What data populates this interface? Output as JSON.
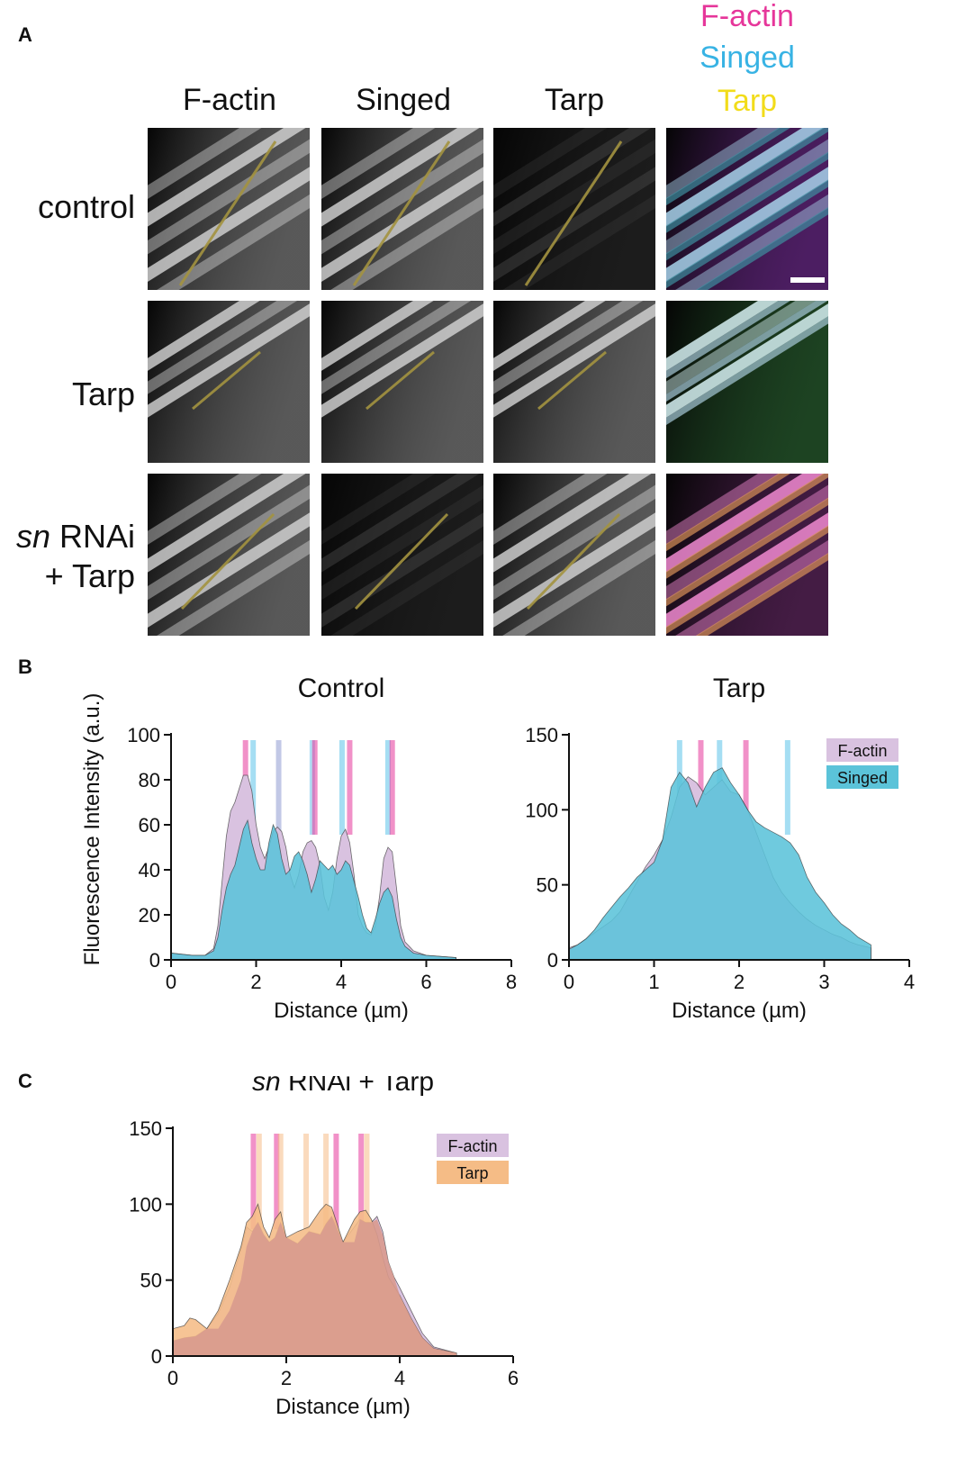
{
  "panel_labels": {
    "a": "A",
    "b": "B",
    "c": "C"
  },
  "panel_a": {
    "column_headers": [
      "F-actin",
      "Singed",
      "Tarp"
    ],
    "merge_legend": [
      {
        "label": "F-actin",
        "color": "#e6369a"
      },
      {
        "label": "Singed",
        "color": "#38b3e4"
      },
      {
        "label": "Tarp",
        "color": "#f2dc1a"
      }
    ],
    "rows": [
      {
        "label": "control"
      },
      {
        "label": "Tarp"
      },
      {
        "label_italic": "sn",
        "label_rest": " RNAi",
        "label_line2": "+ Tarp"
      }
    ]
  },
  "chart_data": [
    {
      "type": "area",
      "title": "Control",
      "xlabel": "Distance (µm)",
      "ylabel": "Fluorescence Intensity (a.u.)",
      "xlim": [
        0,
        8
      ],
      "ylim": [
        0,
        100
      ],
      "xticks": [
        0,
        2,
        4,
        6,
        8
      ],
      "yticks": [
        0,
        20,
        40,
        60,
        80,
        100
      ],
      "legend": "none",
      "series": [
        {
          "color": "#d9c2e0",
          "x": [
            0,
            0.5,
            0.8,
            1.0,
            1.1,
            1.2,
            1.3,
            1.4,
            1.5,
            1.6,
            1.7,
            1.8,
            1.9,
            2.0,
            2.1,
            2.2,
            2.3,
            2.4,
            2.5,
            2.6,
            2.7,
            2.8,
            2.9,
            3.0,
            3.1,
            3.2,
            3.3,
            3.4,
            3.5,
            3.6,
            3.7,
            3.8,
            3.9,
            4.0,
            4.1,
            4.2,
            4.3,
            4.4,
            4.5,
            4.6,
            4.7,
            4.8,
            4.9,
            5.0,
            5.1,
            5.2,
            5.3,
            5.4,
            5.5,
            5.7,
            6.0,
            6.7
          ],
          "y": [
            3,
            2,
            2,
            5,
            15,
            35,
            55,
            66,
            70,
            76,
            82,
            82,
            75,
            60,
            50,
            45,
            50,
            57,
            59,
            57,
            50,
            38,
            32,
            38,
            48,
            52,
            53,
            50,
            42,
            28,
            22,
            30,
            45,
            55,
            58,
            52,
            38,
            20,
            15,
            12,
            11,
            15,
            28,
            45,
            50,
            48,
            32,
            15,
            8,
            4,
            2,
            1
          ]
        },
        {
          "color": "#5bc3d9",
          "x": [
            0,
            0.5,
            0.8,
            1.0,
            1.1,
            1.2,
            1.3,
            1.4,
            1.5,
            1.6,
            1.7,
            1.8,
            1.9,
            2.0,
            2.1,
            2.2,
            2.3,
            2.4,
            2.5,
            2.6,
            2.7,
            2.8,
            2.9,
            3.0,
            3.1,
            3.2,
            3.3,
            3.4,
            3.5,
            3.6,
            3.7,
            3.8,
            3.9,
            4.0,
            4.1,
            4.2,
            4.3,
            4.4,
            4.5,
            4.6,
            4.7,
            4.8,
            4.9,
            5.0,
            5.1,
            5.2,
            5.3,
            5.4,
            5.5,
            5.7,
            6.0,
            6.7
          ],
          "y": [
            3,
            2,
            2,
            4,
            10,
            22,
            32,
            38,
            42,
            50,
            58,
            62,
            52,
            45,
            40,
            40,
            52,
            60,
            56,
            45,
            38,
            40,
            46,
            48,
            44,
            38,
            30,
            36,
            44,
            42,
            40,
            42,
            38,
            40,
            44,
            42,
            35,
            28,
            20,
            14,
            12,
            18,
            25,
            30,
            32,
            28,
            18,
            10,
            6,
            3,
            2,
            1
          ]
        }
      ],
      "peak_markers": [
        {
          "x": 1.75,
          "color": "#e6369a"
        },
        {
          "x": 1.93,
          "color": "#5bc3e9"
        },
        {
          "x": 2.53,
          "color": "#8f9ad1"
        },
        {
          "x": 3.32,
          "color": "#6fc3e9"
        },
        {
          "x": 3.38,
          "color": "#e6369a"
        },
        {
          "x": 4.02,
          "color": "#5bc3e9"
        },
        {
          "x": 4.2,
          "color": "#e6369a"
        },
        {
          "x": 5.1,
          "color": "#5bc3e9"
        },
        {
          "x": 5.2,
          "color": "#e6369a"
        }
      ]
    },
    {
      "type": "area",
      "title": "Tarp",
      "xlabel": "Distance (µm)",
      "ylabel": "",
      "xlim": [
        0,
        4
      ],
      "ylim": [
        0,
        150
      ],
      "xticks": [
        0,
        1,
        2,
        3,
        4
      ],
      "yticks": [
        0,
        50,
        100,
        150
      ],
      "legend": "top-right",
      "series": [
        {
          "name": "F-actin",
          "color": "#d9c2e0",
          "x": [
            0,
            0.1,
            0.2,
            0.3,
            0.4,
            0.5,
            0.6,
            0.7,
            0.8,
            0.9,
            1.0,
            1.1,
            1.2,
            1.3,
            1.4,
            1.5,
            1.6,
            1.7,
            1.8,
            1.9,
            2.0,
            2.1,
            2.2,
            2.3,
            2.4,
            2.5,
            2.6,
            2.7,
            2.8,
            2.9,
            3.0,
            3.1,
            3.2,
            3.3,
            3.4,
            3.55
          ],
          "y": [
            8,
            10,
            14,
            18,
            22,
            26,
            32,
            42,
            52,
            62,
            70,
            80,
            95,
            115,
            122,
            118,
            110,
            115,
            120,
            112,
            110,
            100,
            85,
            70,
            55,
            45,
            38,
            32,
            27,
            23,
            20,
            17,
            15,
            12,
            10,
            8
          ]
        },
        {
          "name": "Singed",
          "color": "#5bc3d9",
          "x": [
            0,
            0.1,
            0.2,
            0.3,
            0.4,
            0.5,
            0.6,
            0.7,
            0.8,
            0.9,
            1.0,
            1.1,
            1.2,
            1.3,
            1.4,
            1.5,
            1.6,
            1.7,
            1.8,
            1.9,
            2.0,
            2.1,
            2.2,
            2.3,
            2.4,
            2.5,
            2.6,
            2.7,
            2.8,
            2.9,
            3.0,
            3.1,
            3.2,
            3.3,
            3.4,
            3.55
          ],
          "y": [
            7,
            10,
            14,
            20,
            28,
            35,
            42,
            48,
            55,
            60,
            65,
            80,
            115,
            125,
            118,
            102,
            115,
            125,
            128,
            118,
            110,
            100,
            92,
            88,
            85,
            82,
            78,
            70,
            55,
            45,
            38,
            30,
            24,
            20,
            15,
            10
          ]
        }
      ],
      "peak_markers": [
        {
          "x": 1.3,
          "color": "#5bc3e9"
        },
        {
          "x": 1.55,
          "color": "#e6369a"
        },
        {
          "x": 1.77,
          "color": "#5bc3e9"
        },
        {
          "x": 2.08,
          "color": "#e6369a"
        },
        {
          "x": 2.57,
          "color": "#5bc3e9"
        }
      ]
    },
    {
      "type": "area",
      "title_italic": "sn",
      "title_rest": " RNAi + Tarp",
      "xlabel": "Distance (µm)",
      "ylabel": "",
      "xlim": [
        0,
        6
      ],
      "ylim": [
        0,
        150
      ],
      "xticks": [
        0,
        2,
        4,
        6
      ],
      "yticks": [
        0,
        50,
        100,
        150
      ],
      "legend": "top-right",
      "series": [
        {
          "name": "F-actin",
          "color": "#d9c2e0",
          "x": [
            0,
            0.2,
            0.4,
            0.6,
            0.8,
            1.0,
            1.2,
            1.3,
            1.4,
            1.5,
            1.6,
            1.7,
            1.8,
            1.9,
            2.0,
            2.2,
            2.4,
            2.6,
            2.7,
            2.8,
            3.0,
            3.2,
            3.3,
            3.4,
            3.5,
            3.6,
            3.7,
            3.8,
            3.9,
            4.0,
            4.2,
            4.4,
            4.6,
            5.0
          ],
          "y": [
            10,
            12,
            13,
            18,
            28,
            45,
            70,
            85,
            82,
            88,
            80,
            75,
            78,
            88,
            78,
            74,
            82,
            80,
            87,
            92,
            75,
            85,
            90,
            88,
            88,
            92,
            82,
            62,
            52,
            45,
            30,
            15,
            6,
            2
          ]
        },
        {
          "name": "Tarp",
          "color": "#f5bc86",
          "x": [
            0,
            0.2,
            0.3,
            0.4,
            0.6,
            0.8,
            1.0,
            1.2,
            1.3,
            1.4,
            1.5,
            1.6,
            1.7,
            1.8,
            1.9,
            2.0,
            2.2,
            2.4,
            2.6,
            2.7,
            2.8,
            3.0,
            3.2,
            3.3,
            3.4,
            3.5,
            3.6,
            3.7,
            3.8,
            4.0,
            4.2,
            4.4,
            4.6,
            5.0
          ],
          "y": [
            18,
            20,
            25,
            24,
            18,
            30,
            50,
            72,
            88,
            92,
            100,
            85,
            78,
            90,
            95,
            78,
            82,
            85,
            96,
            100,
            98,
            75,
            90,
            95,
            96,
            90,
            80,
            65,
            52,
            40,
            25,
            12,
            5,
            2
          ]
        }
      ],
      "peak_markers": [
        {
          "x": 1.42,
          "color": "#e6369a"
        },
        {
          "x": 1.52,
          "color": "#f5bc86"
        },
        {
          "x": 1.83,
          "color": "#e6369a"
        },
        {
          "x": 1.9,
          "color": "#f5bc86"
        },
        {
          "x": 2.35,
          "color": "#f5bc86"
        },
        {
          "x": 2.7,
          "color": "#f5bc86"
        },
        {
          "x": 2.88,
          "color": "#e6369a"
        },
        {
          "x": 3.32,
          "color": "#e6369a"
        },
        {
          "x": 3.42,
          "color": "#f5bc86"
        }
      ]
    }
  ]
}
